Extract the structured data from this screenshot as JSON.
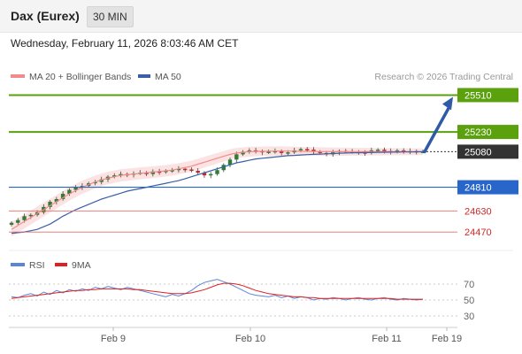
{
  "header": {
    "title": "Dax (Eurex)",
    "timeframe": "30 MIN"
  },
  "datetime": "Wednesday, February 11, 2026 8:03:46 AM CET",
  "legend": {
    "ma20_label": "MA 20 + Bollinger Bands",
    "ma50_label": "MA 50",
    "credit": "Research © 2026 Trading Central"
  },
  "colors": {
    "resistance": "#5aa10d",
    "support": "#2867c9",
    "minor_support": "#e56b6b",
    "ma20": "#f08c8c",
    "ma50": "#3a5fa8",
    "bollinger_fill": "#fbd9d9",
    "arrow": "#2e5aa8",
    "candle_up": "#2e7d32",
    "candle_down": "#c62828",
    "current_tag": "#333333",
    "rsi": "#5b86d6",
    "rsi_ma": "#e02020"
  },
  "chart_data": [
    {
      "type": "line",
      "title": "Dax (Eurex)",
      "x_ticks": [
        "Feb 9",
        "Feb 10",
        "Feb 11",
        "Feb 19"
      ],
      "y_range": [
        24350,
        25560
      ],
      "price_levels": [
        {
          "value": 25510,
          "label": "25510",
          "kind": "resistance"
        },
        {
          "value": 25230,
          "label": "25230",
          "kind": "resistance"
        },
        {
          "value": 25080,
          "label": "25080",
          "kind": "current"
        },
        {
          "value": 24810,
          "label": "24810",
          "kind": "support"
        },
        {
          "value": 24630,
          "label": "24630",
          "kind": "minor_support"
        },
        {
          "value": 24470,
          "label": "24470",
          "kind": "minor_support"
        }
      ],
      "forecast": {
        "from": 25080,
        "to": 25510
      },
      "series": [
        {
          "name": "MA 20 + Bollinger Bands",
          "kind": "ma20"
        },
        {
          "name": "MA 50",
          "kind": "ma50"
        }
      ],
      "close": [
        24540,
        24560,
        24590,
        24600,
        24620,
        24660,
        24700,
        24720,
        24760,
        24790,
        24810,
        24820,
        24840,
        24850,
        24870,
        24890,
        24900,
        24910,
        24905,
        24915,
        24920,
        24910,
        24930,
        24925,
        24935,
        24940,
        24950,
        24945,
        24935,
        24920,
        24900,
        24910,
        24940,
        24980,
        25020,
        25060,
        25080,
        25090,
        25085,
        25075,
        25080,
        25085,
        25070,
        25075,
        25090,
        25100,
        25095,
        25080,
        25070,
        25060,
        25075,
        25085,
        25080,
        25080,
        25075,
        25070,
        25090,
        25095,
        25085,
        25080,
        25090,
        25080,
        25085,
        25080,
        25080
      ],
      "ma20": [
        24490,
        24520,
        24550,
        24580,
        24610,
        24640,
        24670,
        24700,
        24730,
        24760,
        24785,
        24810,
        24830,
        24850,
        24865,
        24880,
        24890,
        24900,
        24905,
        24910,
        24915,
        24920,
        24925,
        24930,
        24935,
        24940,
        24950,
        24960,
        24970,
        24985,
        25000,
        25015,
        25030,
        25045,
        25060,
        25070,
        25075,
        25080,
        25082,
        25083,
        25084,
        25085,
        25085,
        25085,
        25084,
        25083,
        25082,
        25082,
        25081,
        25081,
        25080,
        25080,
        25080,
        25080,
        25080,
        25080,
        25080,
        25080,
        25080,
        25080,
        25080,
        25080,
        25080,
        25080,
        25080
      ],
      "ma50": [
        24460,
        24465,
        24470,
        24480,
        24490,
        24510,
        24530,
        24560,
        24590,
        24615,
        24640,
        24660,
        24680,
        24700,
        24720,
        24735,
        24750,
        24765,
        24780,
        24790,
        24800,
        24810,
        24820,
        24830,
        24840,
        24850,
        24860,
        24875,
        24890,
        24905,
        24920,
        24935,
        24950,
        24965,
        24980,
        24995,
        25005,
        25015,
        25025,
        25030,
        25035,
        25040,
        25045,
        25050,
        25052,
        25055,
        25058,
        25060,
        25062,
        25064,
        25066,
        25068,
        25070,
        25071,
        25072,
        25073,
        25074,
        25075,
        25076,
        25077,
        25077,
        25078,
        25078,
        25079,
        25080
      ]
    },
    {
      "type": "line",
      "title": "RSI",
      "y_range": [
        20,
        80
      ],
      "y_ticks": [
        70,
        50,
        30
      ],
      "series": [
        {
          "name": "RSI",
          "values": [
            54,
            53,
            56,
            58,
            55,
            60,
            57,
            62,
            59,
            63,
            61,
            64,
            62,
            66,
            64,
            67,
            65,
            63,
            66,
            64,
            62,
            60,
            58,
            56,
            54,
            57,
            55,
            58,
            62,
            68,
            72,
            74,
            76,
            73,
            70,
            66,
            62,
            58,
            56,
            55,
            54,
            56,
            53,
            55,
            52,
            54,
            53,
            50,
            52,
            51,
            53,
            52,
            50,
            52,
            53,
            51,
            50,
            52,
            53,
            51,
            50,
            52,
            51,
            50,
            51
          ]
        },
        {
          "name": "9MA",
          "values": [
            52,
            53,
            54,
            55,
            56,
            57,
            58,
            59,
            60,
            61,
            62,
            62,
            63,
            63,
            64,
            64,
            64,
            64,
            64,
            63,
            63,
            62,
            61,
            60,
            59,
            58,
            58,
            58,
            59,
            61,
            63,
            66,
            69,
            71,
            71,
            70,
            68,
            65,
            62,
            60,
            58,
            57,
            56,
            55,
            54,
            54,
            53,
            53,
            52,
            52,
            52,
            52,
            52,
            52,
            52,
            52,
            52,
            52,
            52,
            52,
            51,
            51,
            51,
            51,
            51
          ]
        }
      ]
    }
  ]
}
